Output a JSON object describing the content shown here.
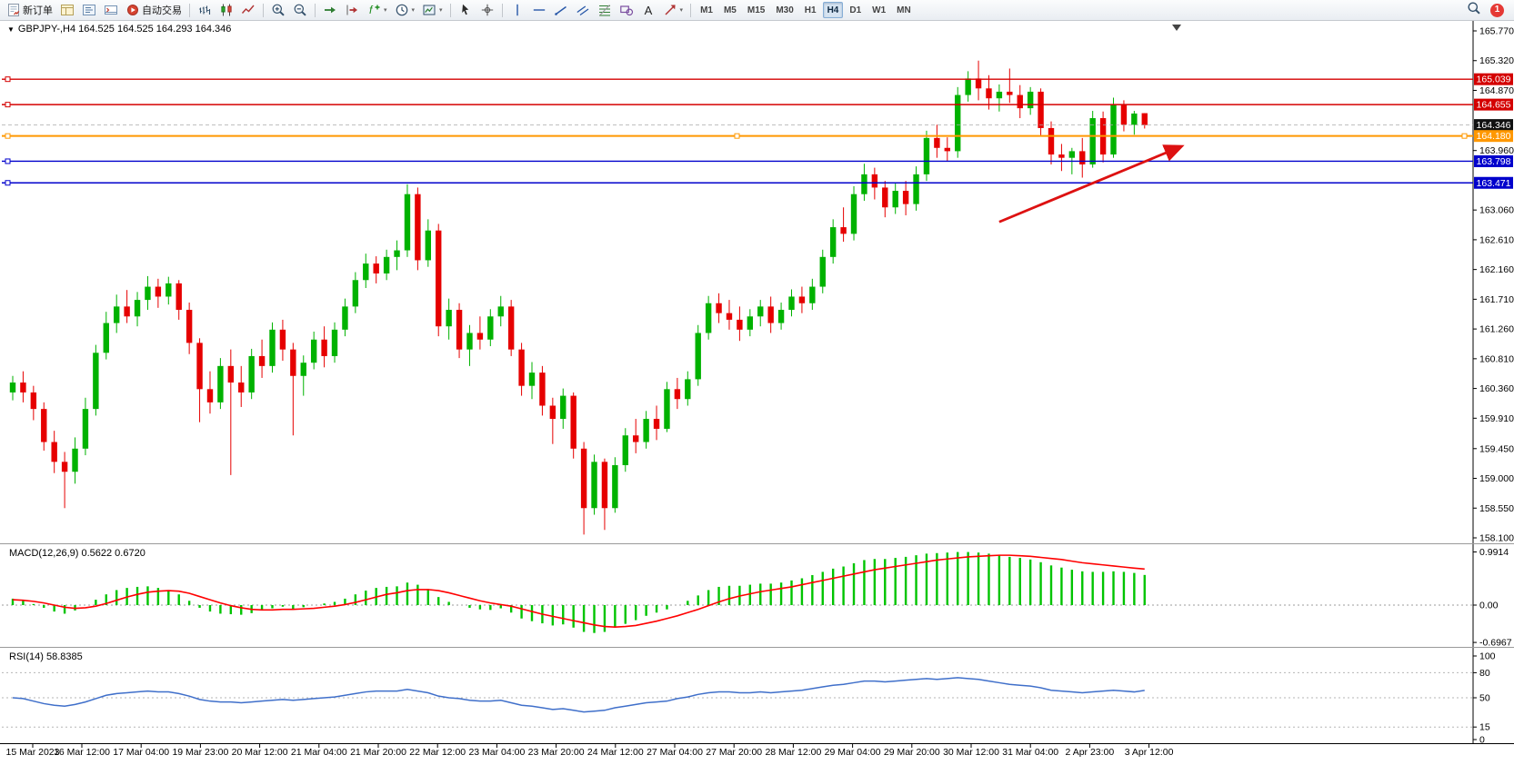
{
  "toolbar": {
    "active_timeframe": "H4",
    "notification_count": "1",
    "timeframes": [
      "M1",
      "M5",
      "M15",
      "M30",
      "H1",
      "H4",
      "D1",
      "W1",
      "MN"
    ],
    "items": [
      {
        "type": "btn",
        "name": "new-order-button",
        "icon": "new-order-icon",
        "label": "新订单"
      },
      {
        "type": "btn",
        "name": "market-watch-button",
        "icon": "market-watch-icon"
      },
      {
        "type": "btn",
        "name": "navigator-button",
        "icon": "navigator-icon"
      },
      {
        "type": "btn",
        "name": "terminal-button",
        "icon": "terminal-icon"
      },
      {
        "type": "btn",
        "name": "auto-trading-button",
        "icon": "auto-trading-icon",
        "label": "自动交易"
      },
      {
        "type": "sep"
      },
      {
        "type": "btn",
        "name": "bar-chart-button",
        "icon": "bar-chart-icon"
      },
      {
        "type": "btn",
        "name": "candlestick-chart-button",
        "icon": "candlestick-icon"
      },
      {
        "type": "btn",
        "name": "line-chart-button",
        "icon": "line-chart-icon"
      },
      {
        "type": "sep"
      },
      {
        "type": "btn",
        "name": "zoom-in-button",
        "icon": "zoom-in-icon"
      },
      {
        "type": "btn",
        "name": "zoom-out-button",
        "icon": "zoom-out-icon"
      },
      {
        "type": "sep"
      },
      {
        "type": "btn",
        "name": "auto-scroll-button",
        "icon": "auto-scroll-icon"
      },
      {
        "type": "btn",
        "name": "chart-shift-button",
        "icon": "chart-shift-icon"
      },
      {
        "type": "btn",
        "name": "indicators-button",
        "icon": "indicators-icon",
        "dropdown": true
      },
      {
        "type": "btn",
        "name": "periods-button",
        "icon": "periods-icon",
        "dropdown": true
      },
      {
        "type": "btn",
        "name": "templates-button",
        "icon": "templates-icon",
        "dropdown": true
      },
      {
        "type": "sep"
      },
      {
        "type": "btn",
        "name": "cursor-button",
        "icon": "cursor-icon"
      },
      {
        "type": "btn",
        "name": "crosshair-button",
        "icon": "crosshair-icon"
      },
      {
        "type": "sep"
      },
      {
        "type": "btn",
        "name": "vertical-line-button",
        "icon": "vline-icon"
      },
      {
        "type": "btn",
        "name": "horizontal-line-button",
        "icon": "hline-icon"
      },
      {
        "type": "btn",
        "name": "trendline-button",
        "icon": "trendline-icon"
      },
      {
        "type": "btn",
        "name": "channel-button",
        "icon": "channel-icon"
      },
      {
        "type": "btn",
        "name": "fibonacci-button",
        "icon": "fibonacci-icon"
      },
      {
        "type": "btn",
        "name": "shapes-button",
        "icon": "shapes-icon"
      },
      {
        "type": "btn",
        "name": "text-button",
        "icon": "text-icon"
      },
      {
        "type": "btn",
        "name": "arrows-button",
        "icon": "arrows-icon",
        "dropdown": true
      },
      {
        "type": "sep"
      },
      {
        "type": "tf",
        "name": "timeframe-m1",
        "label": "M1"
      },
      {
        "type": "tf",
        "name": "timeframe-m5",
        "label": "M5"
      },
      {
        "type": "tf",
        "name": "timeframe-m15",
        "label": "M15"
      },
      {
        "type": "tf",
        "name": "timeframe-m30",
        "label": "M30"
      },
      {
        "type": "tf",
        "name": "timeframe-h1",
        "label": "H1"
      },
      {
        "type": "tf",
        "name": "timeframe-h4",
        "label": "H4"
      },
      {
        "type": "tf",
        "name": "timeframe-d1",
        "label": "D1"
      },
      {
        "type": "tf",
        "name": "timeframe-w1",
        "label": "W1"
      },
      {
        "type": "tf",
        "name": "timeframe-mn",
        "label": "MN"
      }
    ]
  },
  "chart": {
    "title": "GBPJPY-,H4 164.525 164.525 164.293 164.346",
    "symbol": "GBPJPY-",
    "timeframe": "H4",
    "price_axis": [
      "165.770",
      "165.320",
      "164.870",
      "163.960",
      "163.060",
      "162.610",
      "162.160",
      "161.710",
      "161.260",
      "160.810",
      "160.360",
      "159.910",
      "159.450",
      "159.000",
      "158.550",
      "158.100"
    ],
    "levels": [
      {
        "name": "resistance-line-upper",
        "label": "165.039",
        "price": 165.039,
        "color": "#d40000",
        "width": 1.4
      },
      {
        "name": "resistance-line-lower",
        "label": "164.655",
        "price": 164.655,
        "color": "#d40000",
        "width": 1.4
      },
      {
        "name": "current-price-line",
        "label": "164.346",
        "price": 164.346,
        "color": "#111111",
        "width": 0.8,
        "current": true
      },
      {
        "name": "pivot-line-orange",
        "label": "164.180",
        "price": 164.18,
        "color": "#ff9800",
        "width": 2,
        "selected": true
      },
      {
        "name": "support-line-upper",
        "label": "163.798",
        "price": 163.798,
        "color": "#0000cc",
        "width": 1.4
      },
      {
        "name": "support-line-lower",
        "label": "163.471",
        "price": 163.471,
        "color": "#0000cc",
        "width": 1.4
      }
    ],
    "arrow": {
      "color": "#dd1111",
      "from": {
        "index": 95,
        "price": 162.88
      },
      "to": {
        "index": 112.5,
        "price": 164.02
      }
    }
  },
  "chart_data": {
    "type": "candlestick",
    "title": "GBPJPY- H4",
    "up_color": "#00b200",
    "down_color": "#e60000",
    "ohlc_current": {
      "open": 164.525,
      "high": 164.525,
      "low": 164.293,
      "close": 164.346
    },
    "y_range": [
      158.1,
      165.77
    ],
    "x_labels": [
      "15 Mar 2023",
      "16 Mar 12:00",
      "17 Mar 04:00",
      "19 Mar 23:00",
      "20 Mar 12:00",
      "21 Mar 04:00",
      "21 Mar 20:00",
      "22 Mar 12:00",
      "23 Mar 04:00",
      "23 Mar 20:00",
      "24 Mar 12:00",
      "27 Mar 04:00",
      "27 Mar 20:00",
      "28 Mar 12:00",
      "29 Mar 04:00",
      "29 Mar 20:00",
      "30 Mar 12:00",
      "31 Mar 04:00",
      "2 Apr 23:00",
      "3 Apr 12:00"
    ],
    "candles": [
      [
        160.3,
        160.55,
        160.18,
        160.45
      ],
      [
        160.45,
        160.62,
        160.15,
        160.3
      ],
      [
        160.3,
        160.4,
        159.88,
        160.05
      ],
      [
        160.05,
        160.15,
        159.42,
        159.55
      ],
      [
        159.55,
        159.72,
        159.08,
        159.25
      ],
      [
        159.25,
        159.4,
        158.55,
        159.1
      ],
      [
        159.1,
        159.62,
        158.92,
        159.45
      ],
      [
        159.45,
        160.22,
        159.35,
        160.05
      ],
      [
        160.05,
        161.02,
        159.95,
        160.9
      ],
      [
        160.9,
        161.52,
        160.8,
        161.35
      ],
      [
        161.35,
        161.78,
        161.2,
        161.6
      ],
      [
        161.6,
        161.85,
        161.35,
        161.45
      ],
      [
        161.45,
        161.82,
        161.3,
        161.7
      ],
      [
        161.7,
        162.06,
        161.55,
        161.9
      ],
      [
        161.9,
        162.02,
        161.58,
        161.75
      ],
      [
        161.75,
        162.05,
        161.63,
        161.95
      ],
      [
        161.95,
        162.0,
        161.4,
        161.55
      ],
      [
        161.55,
        161.66,
        160.88,
        161.05
      ],
      [
        161.05,
        161.12,
        159.85,
        160.35
      ],
      [
        160.35,
        160.62,
        159.98,
        160.15
      ],
      [
        160.15,
        160.82,
        160.05,
        160.7
      ],
      [
        160.7,
        160.95,
        159.05,
        160.45
      ],
      [
        160.45,
        160.7,
        160.08,
        160.3
      ],
      [
        160.3,
        160.96,
        160.2,
        160.85
      ],
      [
        160.85,
        161.1,
        160.52,
        160.7
      ],
      [
        160.7,
        161.36,
        160.6,
        161.25
      ],
      [
        161.25,
        161.4,
        160.78,
        160.95
      ],
      [
        160.95,
        161.05,
        159.65,
        160.55
      ],
      [
        160.55,
        160.86,
        160.25,
        160.75
      ],
      [
        160.75,
        161.22,
        160.65,
        161.1
      ],
      [
        161.1,
        161.3,
        160.68,
        160.85
      ],
      [
        160.85,
        161.36,
        160.75,
        161.25
      ],
      [
        161.25,
        161.72,
        161.15,
        161.6
      ],
      [
        161.6,
        162.12,
        161.5,
        162.0
      ],
      [
        162.0,
        162.4,
        161.88,
        162.25
      ],
      [
        162.25,
        162.36,
        161.95,
        162.1
      ],
      [
        162.1,
        162.46,
        162.0,
        162.35
      ],
      [
        162.35,
        162.6,
        162.15,
        162.45
      ],
      [
        162.45,
        163.45,
        162.35,
        163.3
      ],
      [
        163.3,
        163.4,
        162.15,
        162.3
      ],
      [
        162.3,
        162.92,
        162.2,
        162.75
      ],
      [
        162.75,
        162.85,
        161.15,
        161.3
      ],
      [
        161.3,
        161.72,
        161.1,
        161.55
      ],
      [
        161.55,
        161.65,
        160.82,
        160.95
      ],
      [
        160.95,
        161.32,
        160.7,
        161.2
      ],
      [
        161.2,
        161.45,
        160.95,
        161.1
      ],
      [
        161.1,
        161.56,
        161.0,
        161.45
      ],
      [
        161.45,
        161.76,
        161.3,
        161.6
      ],
      [
        161.6,
        161.7,
        160.85,
        160.95
      ],
      [
        160.95,
        161.05,
        160.25,
        160.4
      ],
      [
        160.4,
        160.76,
        160.2,
        160.6
      ],
      [
        160.6,
        160.7,
        159.95,
        160.1
      ],
      [
        160.1,
        160.22,
        159.52,
        159.9
      ],
      [
        159.9,
        160.36,
        159.75,
        160.25
      ],
      [
        160.25,
        160.3,
        159.3,
        159.45
      ],
      [
        159.45,
        159.55,
        158.15,
        158.55
      ],
      [
        158.55,
        159.36,
        158.45,
        159.25
      ],
      [
        159.25,
        159.3,
        158.22,
        158.55
      ],
      [
        158.55,
        159.32,
        158.48,
        159.2
      ],
      [
        159.2,
        159.76,
        159.1,
        159.65
      ],
      [
        159.65,
        159.9,
        159.38,
        159.55
      ],
      [
        159.55,
        160.02,
        159.45,
        159.9
      ],
      [
        159.9,
        160.1,
        159.58,
        159.75
      ],
      [
        159.75,
        160.46,
        159.7,
        160.35
      ],
      [
        160.35,
        160.52,
        160.05,
        160.2
      ],
      [
        160.2,
        160.62,
        160.1,
        160.5
      ],
      [
        160.5,
        161.32,
        160.4,
        161.2
      ],
      [
        161.2,
        161.76,
        161.1,
        161.65
      ],
      [
        161.65,
        161.8,
        161.35,
        161.5
      ],
      [
        161.5,
        161.7,
        161.25,
        161.4
      ],
      [
        161.4,
        161.6,
        161.08,
        161.25
      ],
      [
        161.25,
        161.56,
        161.15,
        161.45
      ],
      [
        161.45,
        161.7,
        161.3,
        161.6
      ],
      [
        161.6,
        161.75,
        161.2,
        161.35
      ],
      [
        161.35,
        161.66,
        161.25,
        161.55
      ],
      [
        161.55,
        161.86,
        161.45,
        161.75
      ],
      [
        161.75,
        161.9,
        161.5,
        161.65
      ],
      [
        161.65,
        162.02,
        161.55,
        161.9
      ],
      [
        161.9,
        162.46,
        161.8,
        162.35
      ],
      [
        162.35,
        162.92,
        162.25,
        162.8
      ],
      [
        162.8,
        163.1,
        162.58,
        162.7
      ],
      [
        162.7,
        163.42,
        162.6,
        163.3
      ],
      [
        163.3,
        163.76,
        163.2,
        163.6
      ],
      [
        163.6,
        163.7,
        163.22,
        163.4
      ],
      [
        163.4,
        163.5,
        162.95,
        163.1
      ],
      [
        163.1,
        163.46,
        163.0,
        163.35
      ],
      [
        163.35,
        163.5,
        162.98,
        163.15
      ],
      [
        163.15,
        163.72,
        163.05,
        163.6
      ],
      [
        163.6,
        164.26,
        163.5,
        164.15
      ],
      [
        164.15,
        164.35,
        163.85,
        164.0
      ],
      [
        164.0,
        164.16,
        163.8,
        163.95
      ],
      [
        163.95,
        164.92,
        163.85,
        164.8
      ],
      [
        164.8,
        165.16,
        164.7,
        165.05
      ],
      [
        165.05,
        165.32,
        164.72,
        164.9
      ],
      [
        164.9,
        165.1,
        164.58,
        164.75
      ],
      [
        164.75,
        164.96,
        164.55,
        164.85
      ],
      [
        164.85,
        165.2,
        164.68,
        164.8
      ],
      [
        164.8,
        164.95,
        164.45,
        164.6
      ],
      [
        164.6,
        164.92,
        164.5,
        164.85
      ],
      [
        164.85,
        164.9,
        164.18,
        164.3
      ],
      [
        164.3,
        164.4,
        163.75,
        163.9
      ],
      [
        163.9,
        164.06,
        163.65,
        163.85
      ],
      [
        163.85,
        164.0,
        163.6,
        163.95
      ],
      [
        163.95,
        164.15,
        163.55,
        163.75
      ],
      [
        163.75,
        164.56,
        163.7,
        164.45
      ],
      [
        164.45,
        164.55,
        163.78,
        163.9
      ],
      [
        163.9,
        164.76,
        163.85,
        164.65
      ],
      [
        164.65,
        164.72,
        164.25,
        164.35
      ],
      [
        164.35,
        164.56,
        164.2,
        164.52
      ],
      [
        164.525,
        164.525,
        164.293,
        164.346
      ]
    ]
  },
  "macd": {
    "label": "MACD(12,26,9) 0.5622 0.6720",
    "values": {
      "macd": 0.5622,
      "signal": 0.672
    },
    "scale": [
      {
        "label": "0.9914",
        "value": 0.9914
      },
      {
        "label": "0.00",
        "value": 0
      },
      {
        "label": "-0.6967",
        "value": -0.6967
      }
    ],
    "histogram": [
      0.12,
      0.08,
      0.02,
      -0.05,
      -0.12,
      -0.16,
      -0.1,
      0.0,
      0.1,
      0.2,
      0.28,
      0.32,
      0.34,
      0.35,
      0.32,
      0.28,
      0.2,
      0.08,
      -0.05,
      -0.12,
      -0.16,
      -0.17,
      -0.18,
      -0.15,
      -0.1,
      -0.06,
      -0.03,
      -0.07,
      -0.04,
      0.0,
      0.03,
      0.06,
      0.12,
      0.2,
      0.27,
      0.32,
      0.34,
      0.35,
      0.42,
      0.38,
      0.3,
      0.15,
      0.06,
      0.0,
      -0.05,
      -0.08,
      -0.09,
      -0.06,
      -0.14,
      -0.25,
      -0.3,
      -0.34,
      -0.38,
      -0.36,
      -0.42,
      -0.5,
      -0.52,
      -0.5,
      -0.42,
      -0.35,
      -0.28,
      -0.2,
      -0.14,
      -0.08,
      0.0,
      0.08,
      0.18,
      0.28,
      0.34,
      0.36,
      0.36,
      0.38,
      0.4,
      0.4,
      0.42,
      0.46,
      0.5,
      0.56,
      0.62,
      0.68,
      0.72,
      0.78,
      0.84,
      0.86,
      0.86,
      0.88,
      0.9,
      0.93,
      0.96,
      0.97,
      0.98,
      0.99,
      0.99,
      0.98,
      0.96,
      0.93,
      0.9,
      0.88,
      0.85,
      0.8,
      0.74,
      0.7,
      0.66,
      0.63,
      0.62,
      0.62,
      0.63,
      0.62,
      0.6,
      0.5622
    ],
    "signal_line": [
      0.1,
      0.09,
      0.07,
      0.04,
      0.0,
      -0.04,
      -0.06,
      -0.05,
      -0.02,
      0.03,
      0.09,
      0.15,
      0.2,
      0.24,
      0.26,
      0.27,
      0.26,
      0.22,
      0.16,
      0.1,
      0.04,
      -0.01,
      -0.05,
      -0.08,
      -0.09,
      -0.09,
      -0.08,
      -0.08,
      -0.07,
      -0.06,
      -0.04,
      -0.02,
      0.01,
      0.05,
      0.1,
      0.15,
      0.2,
      0.23,
      0.27,
      0.29,
      0.29,
      0.27,
      0.23,
      0.18,
      0.13,
      0.08,
      0.04,
      0.01,
      -0.02,
      -0.07,
      -0.12,
      -0.17,
      -0.21,
      -0.25,
      -0.29,
      -0.33,
      -0.37,
      -0.4,
      -0.41,
      -0.4,
      -0.38,
      -0.34,
      -0.3,
      -0.25,
      -0.2,
      -0.14,
      -0.08,
      -0.01,
      0.06,
      0.12,
      0.17,
      0.21,
      0.25,
      0.28,
      0.31,
      0.34,
      0.38,
      0.42,
      0.46,
      0.5,
      0.54,
      0.58,
      0.62,
      0.66,
      0.69,
      0.72,
      0.75,
      0.78,
      0.81,
      0.84,
      0.86,
      0.88,
      0.9,
      0.91,
      0.92,
      0.93,
      0.93,
      0.92,
      0.91,
      0.89,
      0.87,
      0.85,
      0.82,
      0.79,
      0.77,
      0.75,
      0.73,
      0.71,
      0.69,
      0.672
    ]
  },
  "rsi": {
    "label": "RSI(14) 58.8385",
    "value": 58.8385,
    "scale": [
      {
        "label": "100",
        "value": 100
      },
      {
        "label": "80",
        "value": 80
      },
      {
        "label": "50",
        "value": 50
      },
      {
        "label": "15",
        "value": 15
      },
      {
        "label": "0",
        "value": 0
      }
    ],
    "dashed_levels": [
      80,
      50,
      15
    ],
    "values": [
      50,
      49,
      46,
      43,
      41,
      40,
      42,
      45,
      49,
      53,
      55,
      56,
      57,
      58,
      57,
      57,
      55,
      52,
      48,
      46,
      45,
      45,
      44,
      45,
      46,
      47,
      48,
      47,
      48,
      49,
      50,
      51,
      53,
      55,
      57,
      58,
      58,
      58,
      60,
      58,
      56,
      52,
      50,
      49,
      47,
      46,
      46,
      47,
      44,
      41,
      40,
      38,
      36,
      37,
      35,
      33,
      34,
      35,
      38,
      40,
      42,
      44,
      45,
      46,
      49,
      51,
      54,
      56,
      57,
      57,
      56,
      56,
      57,
      56,
      57,
      58,
      59,
      61,
      63,
      65,
      66,
      68,
      70,
      70,
      69,
      70,
      71,
      72,
      73,
      72,
      73,
      74,
      73,
      72,
      70,
      68,
      66,
      65,
      64,
      62,
      59,
      58,
      57,
      56,
      57,
      58,
      59,
      58,
      57,
      58.84
    ]
  }
}
